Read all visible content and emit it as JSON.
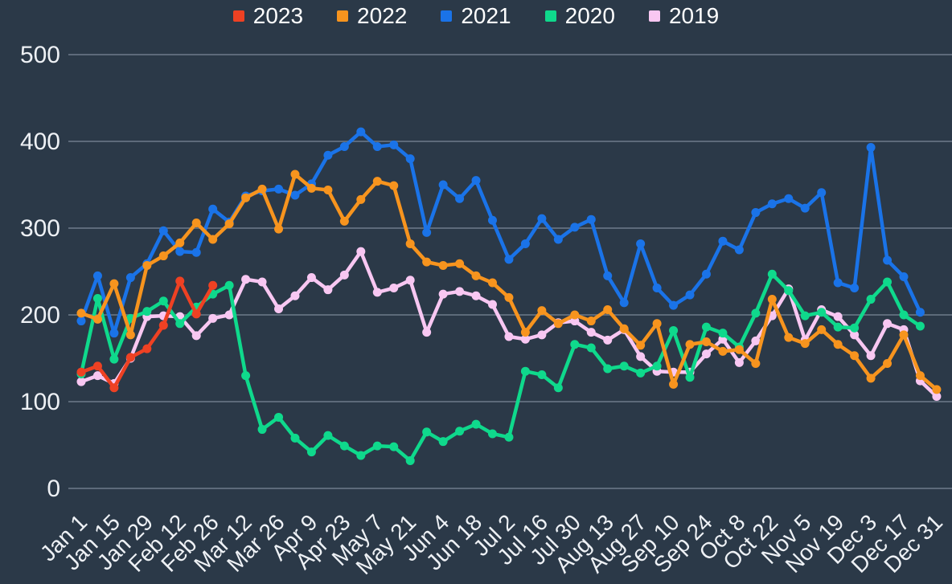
{
  "page": {
    "background_color": "#2b3948",
    "gridline_color": "#5d6a7a",
    "axis_text_color": "#eef1f5",
    "legend_text_color": "#ffffff"
  },
  "legend": {
    "position": "top",
    "items": [
      {
        "label": "2023",
        "color": "#ee4123"
      },
      {
        "label": "2022",
        "color": "#f7941e"
      },
      {
        "label": "2021",
        "color": "#1a73e8"
      },
      {
        "label": "2020",
        "color": "#0fd98c"
      },
      {
        "label": "2019",
        "color": "#f8c7f2"
      }
    ]
  },
  "chart_data": {
    "type": "line",
    "title": "",
    "xlabel": "",
    "ylabel": "",
    "ylim": [
      0,
      500
    ],
    "yticks": [
      0,
      100,
      200,
      300,
      400,
      500
    ],
    "grid": "horizontal",
    "legend_position": "top",
    "x": [
      "Jan 1",
      "Jan 8",
      "Jan 15",
      "Jan 22",
      "Jan 29",
      "Feb 5",
      "Feb 12",
      "Feb 19",
      "Feb 26",
      "Mar 5",
      "Mar 12",
      "Mar 19",
      "Mar 26",
      "Apr 2",
      "Apr 9",
      "Apr 16",
      "Apr 23",
      "Apr 30",
      "May 7",
      "May 14",
      "May 21",
      "May 28",
      "Jun 4",
      "Jun 11",
      "Jun 18",
      "Jun 25",
      "Jul 2",
      "Jul 9",
      "Jul 16",
      "Jul 23",
      "Jul 30",
      "Aug 6",
      "Aug 13",
      "Aug 20",
      "Aug 27",
      "Sep 3",
      "Sep 10",
      "Sep 17",
      "Sep 24",
      "Oct 1",
      "Oct 8",
      "Oct 15",
      "Oct 22",
      "Oct 29",
      "Nov 5",
      "Nov 12",
      "Nov 19",
      "Nov 26",
      "Dec 3",
      "Dec 10",
      "Dec 17",
      "Dec 24",
      "Dec 31"
    ],
    "x_tick_labels": [
      "Jan 1",
      "Jan 15",
      "Jan 29",
      "Feb 12",
      "Feb 26",
      "Mar 12",
      "Mar 26",
      "Apr 9",
      "Apr 23",
      "May 7",
      "May 21",
      "Jun 4",
      "Jun 18",
      "Jul 2",
      "Jul 16",
      "Jul 30",
      "Aug 13",
      "Aug 27",
      "Sep 10",
      "Sep 24",
      "Oct 8",
      "Oct 22",
      "Nov 5",
      "Nov 19",
      "Dec 3",
      "Dec 17",
      "Dec 31"
    ],
    "series": [
      {
        "name": "2023",
        "color": "#ee4123",
        "values": [
          134,
          141,
          116,
          151,
          161,
          188,
          239,
          201,
          234
        ]
      },
      {
        "name": "2022",
        "color": "#f7941e",
        "values": [
          202,
          195,
          236,
          177,
          257,
          268,
          283,
          306,
          287,
          305,
          335,
          345,
          299,
          362,
          346,
          344,
          308,
          333,
          354,
          349,
          282,
          261,
          257,
          259,
          245,
          237,
          220,
          180,
          205,
          190,
          200,
          193,
          206,
          184,
          165,
          190,
          120,
          166,
          169,
          158,
          160,
          144,
          218,
          174,
          167,
          183,
          166,
          153,
          127,
          144,
          177,
          130,
          114
        ]
      },
      {
        "name": "2021",
        "color": "#1a73e8",
        "values": [
          193,
          245,
          179,
          243,
          259,
          297,
          273,
          272,
          322,
          307,
          337,
          343,
          345,
          338,
          351,
          384,
          394,
          411,
          394,
          396,
          380,
          295,
          350,
          334,
          355,
          309,
          264,
          282,
          311,
          287,
          301,
          310,
          245,
          214,
          282,
          231,
          211,
          223,
          247,
          285,
          275,
          318,
          328,
          334,
          323,
          341,
          237,
          231,
          393,
          263,
          244,
          203
        ]
      },
      {
        "name": "2020",
        "color": "#0fd98c",
        "values": [
          132,
          219,
          149,
          196,
          204,
          216,
          190,
          209,
          224,
          234,
          130,
          68,
          82,
          58,
          42,
          61,
          49,
          38,
          49,
          48,
          32,
          65,
          54,
          66,
          74,
          63,
          59,
          135,
          131,
          116,
          166,
          162,
          138,
          141,
          133,
          141,
          182,
          128,
          186,
          179,
          163,
          202,
          247,
          228,
          199,
          203,
          186,
          185,
          218,
          238,
          200,
          187
        ]
      },
      {
        "name": "2019",
        "color": "#f8c7f2",
        "values": [
          123,
          130,
          121,
          150,
          198,
          199,
          198,
          176,
          196,
          200,
          241,
          238,
          207,
          222,
          243,
          229,
          246,
          273,
          226,
          231,
          240,
          180,
          224,
          227,
          222,
          212,
          175,
          172,
          177,
          191,
          193,
          180,
          171,
          183,
          152,
          135,
          134,
          134,
          155,
          172,
          145,
          170,
          199,
          230,
          171,
          206,
          198,
          177,
          153,
          190,
          183,
          124,
          106
        ]
      }
    ]
  }
}
